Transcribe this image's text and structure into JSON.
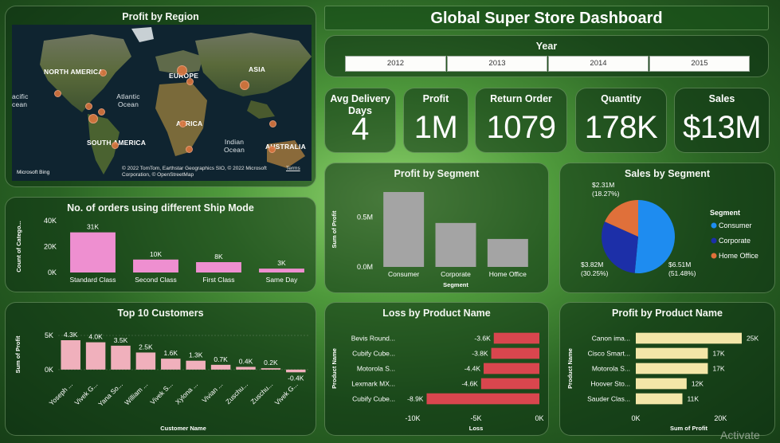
{
  "title": "Global Super Store Dashboard",
  "year": {
    "label": "Year",
    "options": [
      "2012",
      "2013",
      "2014",
      "2015"
    ]
  },
  "kpis": [
    {
      "label": "Avg Delivery Days",
      "value": "4"
    },
    {
      "label": "Profit",
      "value": "1M"
    },
    {
      "label": "Return Order",
      "value": "1079"
    },
    {
      "label": "Quantity",
      "value": "178K"
    },
    {
      "label": "Sales",
      "value": "$13M"
    }
  ],
  "map": {
    "title": "Profit by Region",
    "labels": [
      "NORTH AMERICA",
      "EUROPE",
      "ASIA",
      "AFRICA",
      "SOUTH AMERICA",
      "AUSTRALIA",
      "Atlantic Ocean",
      "Indian Ocean",
      "acific cean"
    ],
    "attribution": "© 2022 TomTom, Earthstar Geographics SIO, © 2022 Microsoft Corporation, © OpenStreetMap",
    "attribution_link": "Terms",
    "brand": "Microsoft Bing"
  },
  "ship_mode": {
    "title": "No. of orders using different Ship Mode"
  },
  "top_customers": {
    "title": "Top 10 Customers"
  },
  "profit_segment": {
    "title": "Profit by Segment"
  },
  "sales_segment": {
    "title": "Sales by Segment"
  },
  "loss_product": {
    "title": "Loss by Product Name"
  },
  "profit_product": {
    "title": "Profit by Product Name"
  },
  "watermark": "Activate",
  "chart_data": [
    {
      "id": "ship_mode",
      "type": "bar",
      "title": "No. of orders using different Ship Mode",
      "ylabel": "Count of Catego...",
      "xlabel": "",
      "categories": [
        "Standard Class",
        "Second Class",
        "First Class",
        "Same Day"
      ],
      "values": [
        31000,
        10000,
        8000,
        3000
      ],
      "data_labels": [
        "31K",
        "10K",
        "8K",
        "3K"
      ],
      "ylim": [
        0,
        40000
      ],
      "yticks": [
        0,
        20000,
        40000
      ],
      "ytick_labels": [
        "0K",
        "20K",
        "40K"
      ],
      "color": "#ee8fd0"
    },
    {
      "id": "top_customers",
      "type": "bar",
      "title": "Top 10 Customers",
      "ylabel": "Sum of Profit",
      "xlabel": "Customer Name",
      "categories": [
        "Yoseph ...",
        "Vivek G...",
        "Yana So...",
        "William ...",
        "Vivek S...",
        "Xylona ...",
        "Vivian ...",
        "Zuschu...",
        "Zuschu...",
        "Vivek G..."
      ],
      "values": [
        4300,
        4000,
        3500,
        2500,
        1600,
        1300,
        700,
        400,
        200,
        -400
      ],
      "data_labels": [
        "4.3K",
        "4.0K",
        "3.5K",
        "2.5K",
        "1.6K",
        "1.3K",
        "0.7K",
        "0.4K",
        "0.2K",
        "-0.4K"
      ],
      "ylim": [
        -600,
        5000
      ],
      "yticks": [
        0,
        5000
      ],
      "ytick_labels": [
        "0K",
        "5K"
      ],
      "color": "#f0b0bc"
    },
    {
      "id": "profit_segment",
      "type": "bar",
      "title": "Profit by Segment",
      "ylabel": "Sum of Profit",
      "xlabel": "Segment",
      "categories": [
        "Consumer",
        "Corporate",
        "Home Office"
      ],
      "values": [
        750000,
        440000,
        280000
      ],
      "ylim": [
        0,
        750000
      ],
      "yticks": [
        0,
        500000
      ],
      "ytick_labels": [
        "0.0M",
        "0.5M"
      ],
      "color": "#a4a4a4"
    },
    {
      "id": "sales_segment",
      "type": "pie",
      "title": "Sales by Segment",
      "legend_title": "Segment",
      "legend_position": "right",
      "slices": [
        {
          "name": "Consumer",
          "value": 6.51,
          "label": "$6.51M",
          "pct": "(51.48%)",
          "color": "#1e8cf0"
        },
        {
          "name": "Corporate",
          "value": 3.82,
          "label": "$3.82M",
          "pct": "(30.25%)",
          "color": "#1c2fa8"
        },
        {
          "name": "Home Office",
          "value": 2.31,
          "label": "$2.31M",
          "pct": "(18.27%)",
          "color": "#e0703a"
        }
      ]
    },
    {
      "id": "loss_product",
      "type": "bar",
      "orientation": "horizontal",
      "title": "Loss by Product Name",
      "ylabel": "Product Name",
      "xlabel": "Loss",
      "categories": [
        "Bevis Round...",
        "Cubify Cube...",
        "Motorola S...",
        "Lexmark MX...",
        "Cubify Cube..."
      ],
      "values": [
        -3600,
        -3800,
        -4400,
        -4600,
        -8900
      ],
      "data_labels": [
        "-3.6K",
        "-3.8K",
        "-4.4K",
        "-4.6K",
        "-8.9K"
      ],
      "xlim": [
        -10000,
        0
      ],
      "xticks": [
        -10000,
        -5000,
        0
      ],
      "xtick_labels": [
        "-10K",
        "-5K",
        "0K"
      ],
      "color": "#d9464e"
    },
    {
      "id": "profit_product",
      "type": "bar",
      "orientation": "horizontal",
      "title": "Profit by Product Name",
      "ylabel": "Product Name",
      "xlabel": "Sum of Profit",
      "categories": [
        "Canon ima...",
        "Cisco Smart...",
        "Motorola S...",
        "Hoover Sto...",
        "Sauder Clas..."
      ],
      "values": [
        25000,
        17000,
        17000,
        12000,
        11000
      ],
      "data_labels": [
        "25K",
        "17K",
        "17K",
        "12K",
        "11K"
      ],
      "xlim": [
        0,
        25000
      ],
      "xticks": [
        0,
        20000
      ],
      "xtick_labels": [
        "0K",
        "20K"
      ],
      "color": "#f3e6a8"
    }
  ]
}
